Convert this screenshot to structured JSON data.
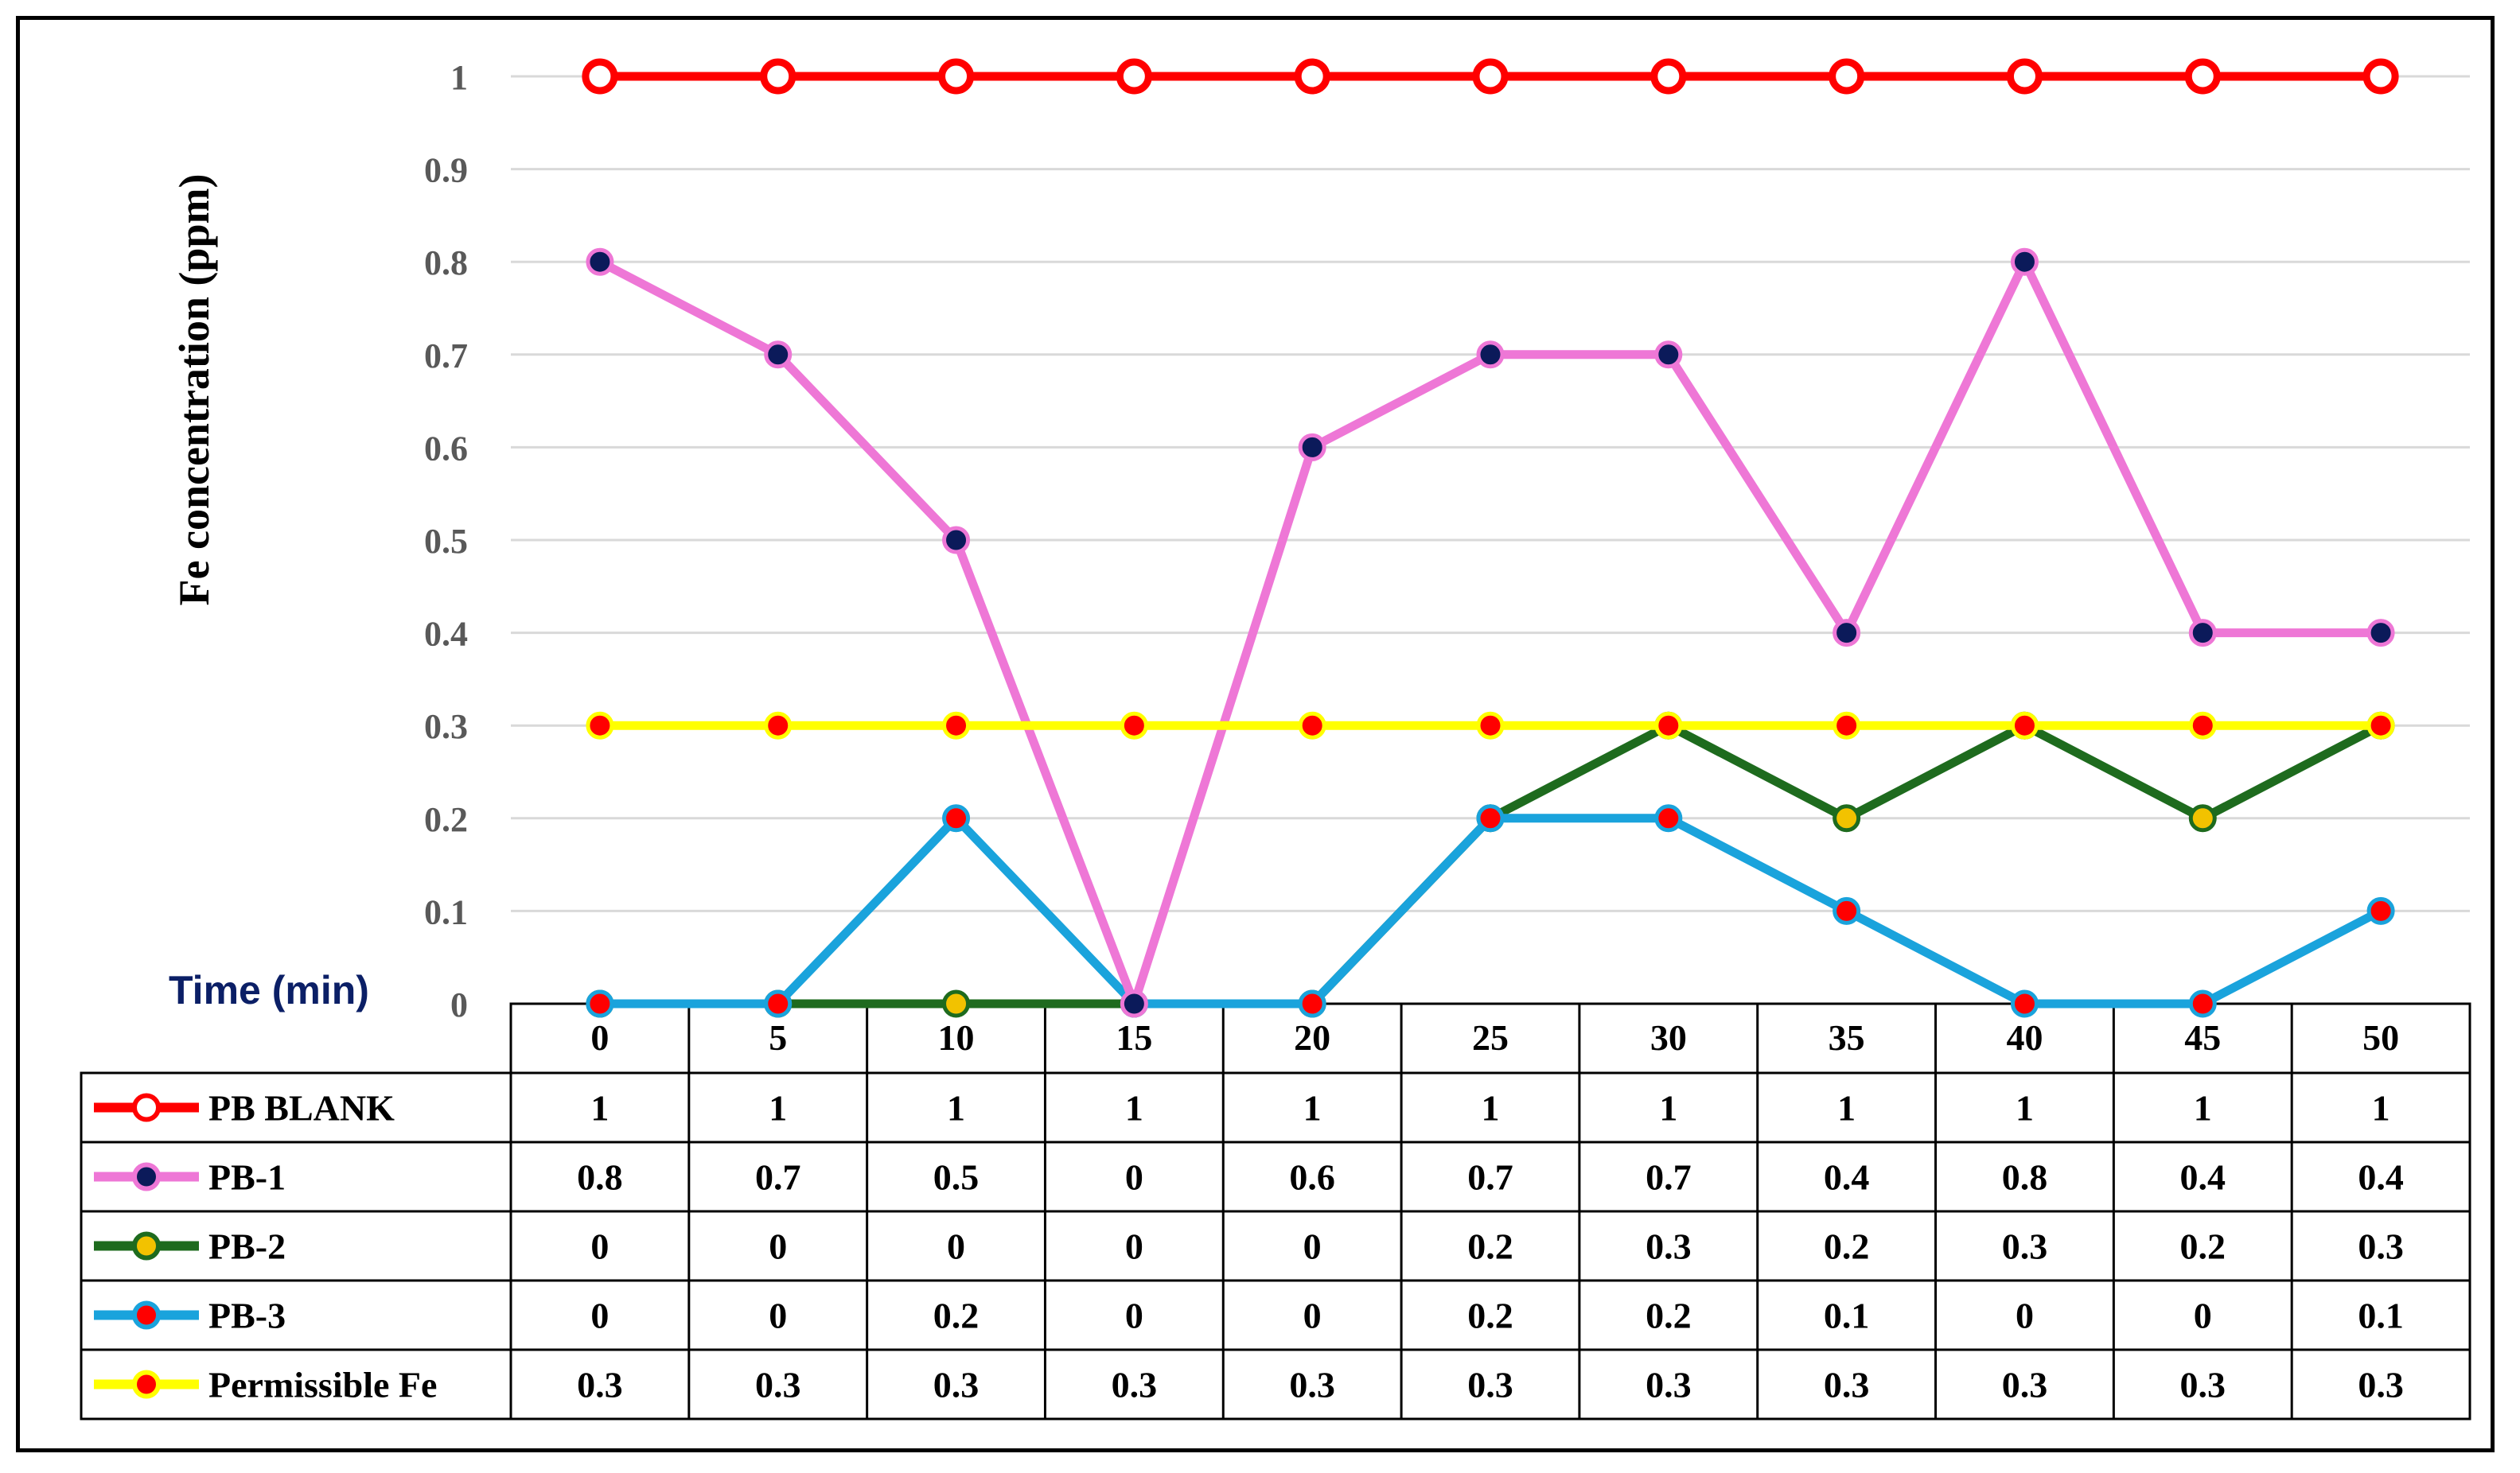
{
  "chart_data": {
    "type": "line",
    "xlabel": "Time (min)",
    "ylabel": "Fe concentration (ppm)",
    "categories": [
      "0",
      "5",
      "10",
      "15",
      "20",
      "25",
      "30",
      "35",
      "40",
      "45",
      "50"
    ],
    "ylim": [
      0,
      1
    ],
    "yticks": [
      "0",
      "0.1",
      "0.2",
      "0.3",
      "0.4",
      "0.5",
      "0.6",
      "0.7",
      "0.8",
      "0.9",
      "1"
    ],
    "grid": true,
    "legend": "data-table-below",
    "series": [
      {
        "name": "PB BLANK",
        "values": [
          1,
          1,
          1,
          1,
          1,
          1,
          1,
          1,
          1,
          1,
          1
        ],
        "labels": [
          "1",
          "1",
          "1",
          "1",
          "1",
          "1",
          "1",
          "1",
          "1",
          "1",
          "1"
        ],
        "line_color": "#FF0000",
        "marker_fill": "#FFFFFF",
        "marker_stroke": "#FF0000"
      },
      {
        "name": "PB-1",
        "values": [
          0.8,
          0.7,
          0.5,
          0,
          0.6,
          0.7,
          0.7,
          0.4,
          0.8,
          0.4,
          0.4
        ],
        "labels": [
          "0.8",
          "0.7",
          "0.5",
          "0",
          "0.6",
          "0.7",
          "0.7",
          "0.4",
          "0.8",
          "0.4",
          "0.4"
        ],
        "line_color": "#EE77D6",
        "marker_fill": "#0B1A5A",
        "marker_stroke": "#EE77D6"
      },
      {
        "name": "PB-2",
        "values": [
          0,
          0,
          0,
          0,
          0,
          0.2,
          0.3,
          0.2,
          0.3,
          0.2,
          0.3
        ],
        "labels": [
          "0",
          "0",
          "0",
          "0",
          "0",
          "0.2",
          "0.3",
          "0.2",
          "0.3",
          "0.2",
          "0.3"
        ],
        "line_color": "#1E6B1E",
        "marker_fill": "#F2C200",
        "marker_stroke": "#1E6B1E"
      },
      {
        "name": "PB-3",
        "values": [
          0,
          0,
          0.2,
          0,
          0,
          0.2,
          0.2,
          0.1,
          0,
          0,
          0.1
        ],
        "labels": [
          "0",
          "0",
          "0.2",
          "0",
          "0",
          "0.2",
          "0.2",
          "0.1",
          "0",
          "0",
          "0.1"
        ],
        "line_color": "#1AA3DC",
        "marker_fill": "#FF0000",
        "marker_stroke": "#1AA3DC"
      },
      {
        "name": "Permissible Fe",
        "values": [
          0.3,
          0.3,
          0.3,
          0.3,
          0.3,
          0.3,
          0.3,
          0.3,
          0.3,
          0.3,
          0.3
        ],
        "labels": [
          "0.3",
          "0.3",
          "0.3",
          "0.3",
          "0.3",
          "0.3",
          "0.3",
          "0.3",
          "0.3",
          "0.3",
          "0.3"
        ],
        "line_color": "#FFFF00",
        "marker_fill": "#FF0000",
        "marker_stroke": "#FFFF00"
      }
    ]
  },
  "colors": {
    "gridline": "#D9D9D9",
    "xlabel": "#0B1F66",
    "text": "#000000"
  }
}
